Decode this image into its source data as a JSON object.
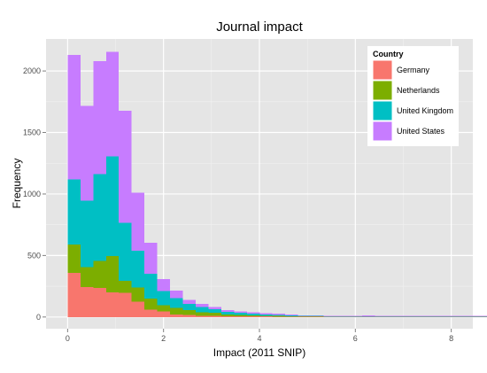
{
  "chart_data": {
    "type": "bar",
    "stacked": true,
    "title": "Journal impact",
    "xlabel": "Impact (2011 SNIP)",
    "ylabel": "Frequency",
    "bin_width": 0.267,
    "x_start": 0,
    "xlim": [
      -0.45,
      8.45
    ],
    "ylim": [
      -95,
      2260
    ],
    "xticks": [
      0,
      2,
      4,
      6,
      8
    ],
    "yticks": [
      0,
      500,
      1000,
      1500,
      2000
    ],
    "grid": true,
    "legend": {
      "title": "Country",
      "position": "top-right"
    },
    "series": [
      {
        "name": "Germany",
        "color": "#F8766D",
        "values": [
          360,
          245,
          235,
          200,
          195,
          125,
          60,
          45,
          20,
          15,
          10,
          8,
          6,
          5,
          5,
          5,
          3,
          3,
          2,
          2,
          2,
          2,
          2,
          2,
          2,
          2,
          2,
          2,
          2,
          2,
          2,
          2,
          2
        ]
      },
      {
        "name": "Netherlands",
        "color": "#7CAE00",
        "values": [
          230,
          160,
          220,
          295,
          100,
          115,
          90,
          50,
          55,
          40,
          30,
          25,
          15,
          10,
          8,
          6,
          5,
          4,
          3,
          3,
          2,
          2,
          2,
          2,
          2,
          2,
          2,
          2,
          2,
          2,
          2,
          2,
          2
        ]
      },
      {
        "name": "United Kingdom",
        "color": "#00BFC4",
        "values": [
          530,
          540,
          705,
          810,
          470,
          300,
          200,
          115,
          80,
          50,
          40,
          30,
          20,
          20,
          15,
          10,
          8,
          5,
          5,
          3,
          3,
          3,
          2,
          3,
          2,
          2,
          2,
          2,
          2,
          2,
          2,
          2,
          2
        ]
      },
      {
        "name": "United States",
        "color": "#C77CFF",
        "values": [
          1010,
          770,
          920,
          850,
          910,
          470,
          255,
          100,
          60,
          35,
          25,
          20,
          15,
          10,
          10,
          10,
          10,
          8,
          4,
          4,
          3,
          3,
          2,
          5,
          2,
          2,
          2,
          2,
          2,
          2,
          2,
          2,
          2
        ]
      }
    ]
  }
}
